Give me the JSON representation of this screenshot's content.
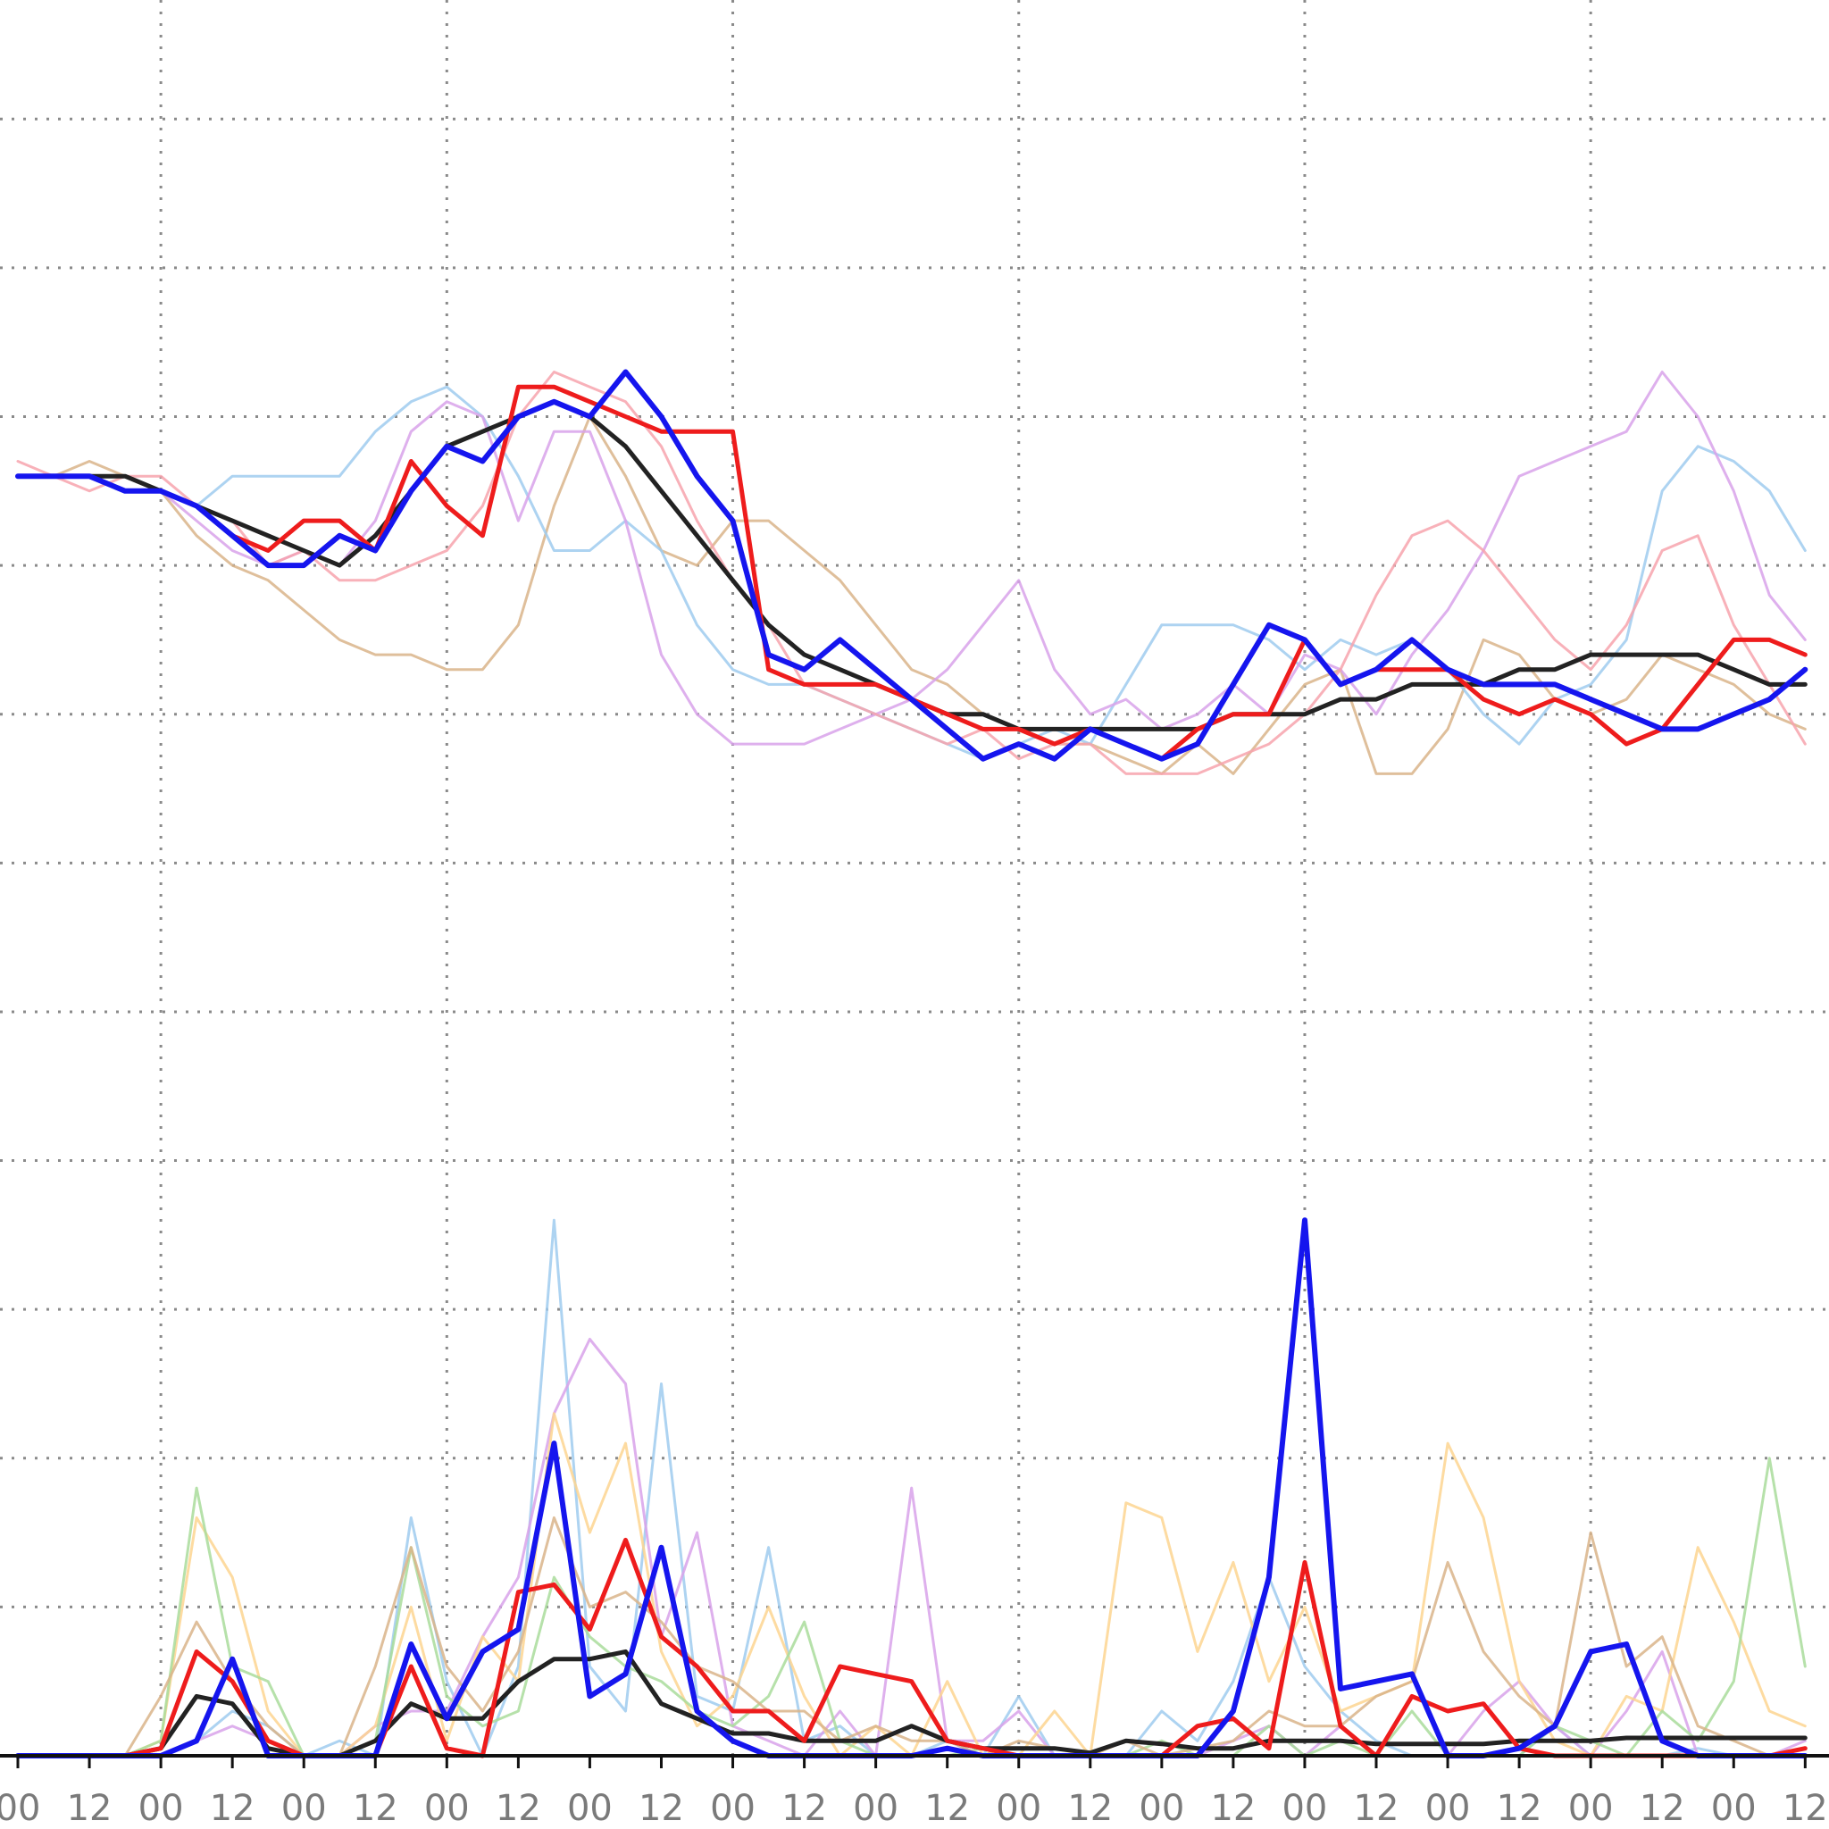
{
  "chart_data": {
    "type": "line",
    "x": [
      0,
      6,
      12,
      18,
      24,
      30,
      36,
      42,
      48,
      54,
      60,
      66,
      72,
      78,
      84,
      90,
      96,
      102,
      108,
      114,
      120,
      126,
      132,
      138,
      144,
      150,
      156,
      162,
      168,
      174,
      180,
      186,
      192,
      198,
      204,
      210,
      216,
      222,
      228,
      234,
      240,
      246,
      252,
      258,
      264,
      270,
      276,
      282,
      288,
      294,
      300
    ],
    "xlim": [
      -3,
      304
    ],
    "ylim": [
      0,
      11.8
    ],
    "xticks": [
      {
        "value": 0,
        "label": "00"
      },
      {
        "value": 12,
        "label": "12"
      },
      {
        "value": 24,
        "label": "00"
      },
      {
        "value": 36,
        "label": "12"
      },
      {
        "value": 48,
        "label": "00"
      },
      {
        "value": 60,
        "label": "12"
      },
      {
        "value": 72,
        "label": "00"
      },
      {
        "value": 84,
        "label": "12"
      },
      {
        "value": 96,
        "label": "00"
      },
      {
        "value": 108,
        "label": "12"
      },
      {
        "value": 120,
        "label": "00"
      },
      {
        "value": 132,
        "label": "12"
      },
      {
        "value": 144,
        "label": "00"
      },
      {
        "value": 156,
        "label": "12"
      },
      {
        "value": 168,
        "label": "00"
      },
      {
        "value": 180,
        "label": "12"
      },
      {
        "value": 192,
        "label": "00"
      },
      {
        "value": 204,
        "label": "12"
      },
      {
        "value": 216,
        "label": "00"
      },
      {
        "value": 228,
        "label": "12"
      },
      {
        "value": 240,
        "label": "00"
      },
      {
        "value": 252,
        "label": "12"
      },
      {
        "value": 264,
        "label": "00"
      },
      {
        "value": 276,
        "label": "12"
      },
      {
        "value": 288,
        "label": "00"
      },
      {
        "value": 300,
        "label": "12"
      }
    ],
    "xgrid": [
      24,
      72,
      120,
      168,
      216,
      264
    ],
    "ygrid": [
      1,
      2,
      3,
      4,
      5,
      6,
      7,
      8,
      9,
      10,
      11
    ],
    "series": [
      {
        "color": "#d9b48a",
        "width": 3,
        "values": [
          8.6,
          8.6,
          8.7,
          8.6,
          8.5,
          8.2,
          8.0,
          7.9,
          7.7,
          7.5,
          7.4,
          7.4,
          7.3,
          7.3,
          7.6,
          8.4,
          9.0,
          8.6,
          8.1,
          8.0,
          8.3,
          8.3,
          8.1,
          7.9,
          7.6,
          7.3,
          7.2,
          7.0,
          6.9,
          6.8,
          6.8,
          6.7,
          6.6,
          6.8,
          6.6,
          6.9,
          7.2,
          7.3,
          6.6,
          6.6,
          6.9,
          7.5,
          7.4,
          7.1,
          7.0,
          7.1,
          7.4,
          7.3,
          7.2,
          7.0,
          6.9
        ]
      },
      {
        "color": "#9fcbee",
        "width": 3,
        "values": [
          8.6,
          8.6,
          8.6,
          8.5,
          8.5,
          8.4,
          8.6,
          8.6,
          8.6,
          8.6,
          8.9,
          9.1,
          9.2,
          9.0,
          8.6,
          8.1,
          8.1,
          8.3,
          8.1,
          7.6,
          7.3,
          7.2,
          7.2,
          7.1,
          7.0,
          6.9,
          6.8,
          6.7,
          6.8,
          6.9,
          6.8,
          7.2,
          7.6,
          7.6,
          7.6,
          7.5,
          7.3,
          7.5,
          7.4,
          7.5,
          7.3,
          7.0,
          6.8,
          7.1,
          7.2,
          7.5,
          8.5,
          8.8,
          8.7,
          8.5,
          8.1
        ]
      },
      {
        "color": "#d8a2ea",
        "width": 3,
        "values": [
          8.6,
          8.6,
          8.6,
          8.5,
          8.5,
          8.3,
          8.1,
          8.0,
          8.1,
          8.0,
          8.3,
          8.9,
          9.1,
          9.0,
          8.3,
          8.9,
          8.9,
          8.3,
          7.4,
          7.0,
          6.8,
          6.8,
          6.8,
          6.9,
          7.0,
          7.1,
          7.3,
          7.6,
          7.9,
          7.3,
          7.0,
          7.1,
          6.9,
          7.0,
          7.2,
          7.0,
          7.4,
          7.3,
          7.0,
          7.4,
          7.7,
          8.1,
          8.6,
          8.7,
          8.8,
          8.9,
          9.3,
          9.0,
          8.5,
          7.8,
          7.5
        ]
      },
      {
        "color": "#f7a3ad",
        "width": 3,
        "values": [
          8.7,
          8.6,
          8.5,
          8.6,
          8.6,
          8.4,
          8.3,
          8.0,
          8.1,
          7.9,
          7.9,
          8.0,
          8.1,
          8.4,
          9.0,
          9.3,
          9.2,
          9.1,
          8.8,
          8.3,
          7.9,
          7.6,
          7.2,
          7.1,
          7.0,
          6.9,
          6.8,
          6.9,
          6.7,
          6.8,
          6.8,
          6.6,
          6.6,
          6.6,
          6.7,
          6.8,
          7.0,
          7.3,
          7.8,
          8.2,
          8.3,
          8.1,
          7.8,
          7.5,
          7.3,
          7.6,
          8.1,
          8.2,
          7.6,
          7.2,
          6.8
        ]
      },
      {
        "color": "#9fcbee",
        "width": 3,
        "values": [
          0,
          0,
          0,
          0,
          0,
          0.1,
          0.3,
          0.2,
          0,
          0.1,
          0,
          1.6,
          0.5,
          0,
          0.6,
          3.6,
          0.6,
          0.3,
          2.5,
          0.4,
          0.3,
          1.4,
          0.1,
          0.2,
          0,
          0,
          0.1,
          0,
          0.4,
          0,
          0,
          0,
          0.3,
          0.1,
          0.5,
          1.2,
          0.6,
          0.3,
          0.1,
          0,
          0,
          0,
          0,
          0.2,
          0,
          0,
          0,
          0.05,
          0,
          0,
          0
        ]
      },
      {
        "color": "#d8a2ea",
        "width": 3,
        "values": [
          0,
          0,
          0,
          0,
          0,
          0.1,
          0.2,
          0.1,
          0,
          0,
          0.2,
          0.3,
          0.3,
          0.8,
          1.2,
          2.3,
          2.8,
          2.5,
          0.8,
          1.5,
          0.2,
          0.1,
          0,
          0.3,
          0,
          1.8,
          0.1,
          0.1,
          0.3,
          0,
          0,
          0,
          0,
          0,
          0.1,
          0.2,
          0,
          0.2,
          0,
          0,
          0,
          0.3,
          0.5,
          0.2,
          0,
          0.3,
          0.7,
          0,
          0,
          0,
          0.1
        ]
      },
      {
        "color": "#fdd590",
        "width": 3,
        "values": [
          0,
          0,
          0,
          0,
          0.1,
          1.6,
          1.2,
          0.3,
          0,
          0,
          0.2,
          1.0,
          0.1,
          0.8,
          0.5,
          2.3,
          1.5,
          2.1,
          0.7,
          0.2,
          0.4,
          1.0,
          0.4,
          0,
          0.2,
          0,
          0.5,
          0,
          0,
          0.3,
          0,
          1.7,
          1.6,
          0.7,
          1.3,
          0.5,
          1.0,
          0.3,
          0.4,
          0.5,
          2.1,
          1.6,
          0.5,
          0.1,
          0,
          0.4,
          0.3,
          1.4,
          0.9,
          0.3,
          0.2
        ]
      },
      {
        "color": "#a9dc9b",
        "width": 3,
        "values": [
          0,
          0,
          0,
          0,
          0.1,
          1.8,
          0.6,
          0.5,
          0,
          0,
          0.1,
          1.4,
          0.4,
          0.2,
          0.3,
          1.2,
          0.8,
          0.6,
          0.5,
          0.3,
          0.2,
          0.4,
          0.9,
          0.1,
          0,
          0,
          0,
          0.05,
          0,
          0,
          0,
          0,
          0.1,
          0,
          0,
          0.2,
          0,
          0.1,
          0,
          0.3,
          0,
          0,
          0,
          0.2,
          0.1,
          0,
          0.3,
          0.1,
          0.5,
          2.0,
          0.6
        ]
      },
      {
        "color": "#d9b48a",
        "width": 3,
        "values": [
          0,
          0,
          0,
          0,
          0.4,
          0.9,
          0.5,
          0.2,
          0,
          0,
          0.6,
          1.4,
          0.6,
          0.3,
          0.7,
          1.6,
          1.0,
          1.1,
          0.9,
          0.6,
          0.5,
          0.3,
          0.3,
          0.1,
          0.2,
          0.1,
          0.1,
          0,
          0.1,
          0.05,
          0,
          0.1,
          0,
          0.05,
          0.1,
          0.3,
          0.2,
          0.2,
          0.4,
          0.5,
          1.3,
          0.7,
          0.4,
          0.2,
          1.5,
          0.6,
          0.8,
          0.2,
          0.1,
          0,
          0
        ]
      },
      {
        "color": "#222222",
        "width": 5,
        "values": [
          8.6,
          8.6,
          8.6,
          8.6,
          8.5,
          8.4,
          8.3,
          8.2,
          8.1,
          8.0,
          8.2,
          8.5,
          8.8,
          8.9,
          9.0,
          9.1,
          9.0,
          8.8,
          8.5,
          8.2,
          7.9,
          7.6,
          7.4,
          7.3,
          7.2,
          7.1,
          7.0,
          7.0,
          6.9,
          6.9,
          6.9,
          6.9,
          6.9,
          6.9,
          7.0,
          7.0,
          7.0,
          7.1,
          7.1,
          7.2,
          7.2,
          7.2,
          7.3,
          7.3,
          7.4,
          7.4,
          7.4,
          7.4,
          7.3,
          7.2,
          7.2
        ]
      },
      {
        "color": "#222222",
        "width": 5,
        "values": [
          0,
          0,
          0,
          0,
          0.05,
          0.4,
          0.35,
          0.05,
          0,
          0,
          0.1,
          0.35,
          0.25,
          0.25,
          0.5,
          0.65,
          0.65,
          0.7,
          0.35,
          0.25,
          0.15,
          0.15,
          0.1,
          0.1,
          0.1,
          0.2,
          0.1,
          0.05,
          0.05,
          0.05,
          0.02,
          0.1,
          0.08,
          0.05,
          0.05,
          0.1,
          0.1,
          0.1,
          0.08,
          0.08,
          0.08,
          0.08,
          0.1,
          0.1,
          0.1,
          0.12,
          0.12,
          0.12,
          0.12,
          0.12,
          0.12
        ]
      },
      {
        "color": "#ee1c1c",
        "width": 5,
        "values": [
          8.6,
          8.6,
          8.6,
          8.5,
          8.5,
          8.4,
          8.2,
          8.1,
          8.3,
          8.3,
          8.1,
          8.7,
          8.4,
          8.2,
          9.2,
          9.2,
          9.1,
          9.0,
          8.9,
          8.9,
          8.9,
          7.3,
          7.2,
          7.2,
          7.2,
          7.1,
          7.0,
          6.9,
          6.9,
          6.8,
          6.9,
          6.8,
          6.7,
          6.9,
          7.0,
          7.0,
          7.5,
          7.2,
          7.3,
          7.3,
          7.3,
          7.1,
          7.0,
          7.1,
          7.0,
          6.8,
          6.9,
          7.2,
          7.5,
          7.5,
          7.4
        ]
      },
      {
        "color": "#ee1c1c",
        "width": 5,
        "values": [
          0,
          0,
          0,
          0,
          0.05,
          0.7,
          0.5,
          0.1,
          0,
          0,
          0,
          0.6,
          0.05,
          0,
          1.1,
          1.15,
          0.85,
          1.45,
          0.8,
          0.6,
          0.3,
          0.3,
          0.1,
          0.6,
          0.55,
          0.5,
          0.1,
          0.05,
          0,
          0,
          0,
          0,
          0,
          0.2,
          0.25,
          0.05,
          1.3,
          0.2,
          0,
          0.4,
          0.3,
          0.35,
          0.05,
          0,
          0,
          0,
          0,
          0,
          0,
          0,
          0.05
        ]
      },
      {
        "color": "#1515ee",
        "width": 6,
        "values": [
          8.6,
          8.6,
          8.6,
          8.5,
          8.5,
          8.4,
          8.2,
          8.0,
          8.0,
          8.2,
          8.1,
          8.5,
          8.8,
          8.7,
          9.0,
          9.1,
          9.0,
          9.3,
          9.0,
          8.6,
          8.3,
          7.4,
          7.3,
          7.5,
          7.3,
          7.1,
          6.9,
          6.7,
          6.8,
          6.7,
          6.9,
          6.8,
          6.7,
          6.8,
          7.2,
          7.6,
          7.5,
          7.2,
          7.3,
          7.5,
          7.3,
          7.2,
          7.2,
          7.2,
          7.1,
          7.0,
          6.9,
          6.9,
          7.0,
          7.1,
          7.3
        ]
      },
      {
        "color": "#1515ee",
        "width": 6,
        "values": [
          0,
          0,
          0,
          0,
          0,
          0.1,
          0.65,
          0,
          0,
          0,
          0,
          0.75,
          0.25,
          0.7,
          0.85,
          2.1,
          0.4,
          0.55,
          1.4,
          0.3,
          0.1,
          0,
          0,
          0,
          0,
          0,
          0.05,
          0,
          0,
          0,
          0,
          0,
          0,
          0,
          0.3,
          1.2,
          3.6,
          0.45,
          0.5,
          0.55,
          0,
          0,
          0.05,
          0.2,
          0.7,
          0.75,
          0.1,
          0,
          0,
          0,
          0
        ]
      }
    ]
  }
}
